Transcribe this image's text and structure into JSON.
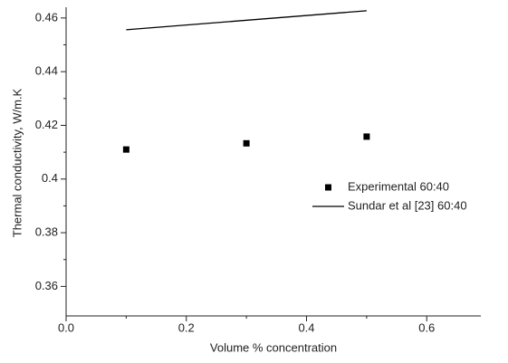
{
  "chart_data": {
    "type": "scatter",
    "xlabel": "Volume % concentration",
    "ylabel": "Thermal conductivity, W/m.K",
    "xlim": [
      0,
      0.69
    ],
    "ylim": [
      0.349,
      0.464
    ],
    "xticks": [
      {
        "value": 0,
        "label": "0.0"
      },
      0.2,
      0.4,
      0.6
    ],
    "yticks": [
      0.36,
      0.38,
      0.4,
      0.42,
      0.44,
      0.46
    ],
    "legend": "right",
    "series": [
      {
        "name": "Experimental 60:40",
        "type": "scatter",
        "color": "#000000",
        "x": [
          0.1,
          0.3,
          0.5
        ],
        "values": [
          0.411,
          0.4133,
          0.4158
        ]
      },
      {
        "name": "Sundar et al [23] 60:40",
        "type": "line",
        "color": "#000000",
        "x": [
          0.1,
          0.5
        ],
        "values": [
          0.4556,
          0.4627
        ]
      }
    ]
  }
}
